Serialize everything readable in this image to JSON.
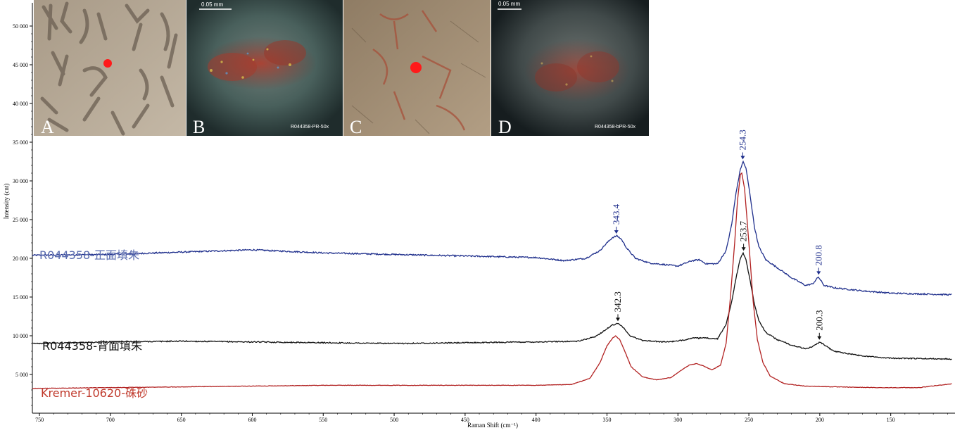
{
  "figure": {
    "panels": [
      {
        "letter": "A",
        "scale_text": "",
        "caption": ""
      },
      {
        "letter": "B",
        "scale_text": "0.05 mm",
        "caption": "R044358-PR-50x"
      },
      {
        "letter": "C",
        "scale_text": "",
        "caption": ""
      },
      {
        "letter": "D",
        "scale_text": "0.05 mm",
        "caption": "R044358-bPR-50x"
      }
    ]
  },
  "chart_data": {
    "type": "line",
    "xlabel": "Raman Shift (cm⁻¹)",
    "ylabel": "Intensity (cnt)",
    "x_reversed": true,
    "xlim": [
      755,
      107
    ],
    "ylim": [
      0,
      55000
    ],
    "x_ticks": [
      750,
      700,
      650,
      600,
      550,
      500,
      450,
      400,
      350,
      300,
      250,
      200,
      150
    ],
    "y_ticks": [
      5000,
      10000,
      15000,
      20000,
      25000,
      30000,
      35000,
      40000,
      45000,
      50000
    ],
    "y_tick_labels": [
      "5 000",
      "10 000",
      "15 000",
      "20 000",
      "25 000",
      "30 000",
      "35 000",
      "40 000",
      "45 000",
      "50 000"
    ],
    "grid": false,
    "series": [
      {
        "name": "R044358-正面填朱",
        "color": "#1f2f8c",
        "label_color": "#5b6db0",
        "noise": 180,
        "points": [
          [
            755,
            20400
          ],
          [
            700,
            20500
          ],
          [
            650,
            20800
          ],
          [
            600,
            21100
          ],
          [
            550,
            20700
          ],
          [
            500,
            20500
          ],
          [
            450,
            20300
          ],
          [
            400,
            20100
          ],
          [
            380,
            19700
          ],
          [
            365,
            20000
          ],
          [
            355,
            21000
          ],
          [
            350,
            22000
          ],
          [
            346,
            22700
          ],
          [
            343,
            22900
          ],
          [
            340,
            22500
          ],
          [
            336,
            21300
          ],
          [
            330,
            20000
          ],
          [
            320,
            19400
          ],
          [
            300,
            19000
          ],
          [
            290,
            19700
          ],
          [
            285,
            19800
          ],
          [
            280,
            19300
          ],
          [
            272,
            19300
          ],
          [
            266,
            21000
          ],
          [
            262,
            24500
          ],
          [
            259,
            28500
          ],
          [
            256,
            31500
          ],
          [
            254,
            32500
          ],
          [
            252,
            31600
          ],
          [
            249,
            28000
          ],
          [
            246,
            24000
          ],
          [
            243,
            21500
          ],
          [
            238,
            19800
          ],
          [
            230,
            18800
          ],
          [
            220,
            17500
          ],
          [
            210,
            16500
          ],
          [
            205,
            16700
          ],
          [
            201,
            17600
          ],
          [
            197,
            16500
          ],
          [
            190,
            16200
          ],
          [
            170,
            15800
          ],
          [
            150,
            15500
          ],
          [
            107,
            15300
          ]
        ],
        "peaks": [
          {
            "x": 343.4,
            "y": 22900,
            "label": "343.4"
          },
          {
            "x": 254.3,
            "y": 32500,
            "label": "254.3"
          },
          {
            "x": 200.8,
            "y": 17600,
            "label": "200.8"
          }
        ]
      },
      {
        "name": "R044358-背面填朱",
        "color": "#111111",
        "label_color": "#111111",
        "noise": 140,
        "points": [
          [
            755,
            9000
          ],
          [
            700,
            9200
          ],
          [
            650,
            9300
          ],
          [
            600,
            9200
          ],
          [
            550,
            9100
          ],
          [
            500,
            9000
          ],
          [
            450,
            9100
          ],
          [
            400,
            9200
          ],
          [
            370,
            9300
          ],
          [
            358,
            9900
          ],
          [
            350,
            10900
          ],
          [
            346,
            11400
          ],
          [
            342,
            11600
          ],
          [
            338,
            11000
          ],
          [
            334,
            10000
          ],
          [
            325,
            9400
          ],
          [
            310,
            9200
          ],
          [
            300,
            9300
          ],
          [
            290,
            9700
          ],
          [
            280,
            9700
          ],
          [
            272,
            9600
          ],
          [
            266,
            11500
          ],
          [
            262,
            14500
          ],
          [
            259,
            17500
          ],
          [
            256,
            20000
          ],
          [
            254,
            20700
          ],
          [
            252,
            19800
          ],
          [
            249,
            17000
          ],
          [
            246,
            14000
          ],
          [
            243,
            12000
          ],
          [
            238,
            10400
          ],
          [
            230,
            9500
          ],
          [
            220,
            8800
          ],
          [
            210,
            8300
          ],
          [
            205,
            8600
          ],
          [
            200,
            9200
          ],
          [
            196,
            8700
          ],
          [
            190,
            8000
          ],
          [
            170,
            7400
          ],
          [
            150,
            7100
          ],
          [
            107,
            7000
          ]
        ],
        "peaks": [
          {
            "x": 342.3,
            "y": 11600,
            "label": "342.3"
          },
          {
            "x": 253.7,
            "y": 20700,
            "label": "253.7"
          },
          {
            "x": 200.3,
            "y": 9200,
            "label": "200.3"
          }
        ]
      },
      {
        "name": "Kremer-10620-硃砂",
        "color": "#b22222",
        "label_color": "#c0392b",
        "noise": 60,
        "points": [
          [
            755,
            3200
          ],
          [
            700,
            3300
          ],
          [
            650,
            3400
          ],
          [
            600,
            3500
          ],
          [
            550,
            3600
          ],
          [
            500,
            3600
          ],
          [
            450,
            3600
          ],
          [
            400,
            3600
          ],
          [
            375,
            3700
          ],
          [
            362,
            4500
          ],
          [
            355,
            6500
          ],
          [
            350,
            8700
          ],
          [
            346,
            9700
          ],
          [
            344,
            10000
          ],
          [
            341,
            9500
          ],
          [
            337,
            7800
          ],
          [
            333,
            6000
          ],
          [
            325,
            4700
          ],
          [
            315,
            4300
          ],
          [
            305,
            4600
          ],
          [
            298,
            5500
          ],
          [
            292,
            6200
          ],
          [
            287,
            6400
          ],
          [
            282,
            6100
          ],
          [
            276,
            5600
          ],
          [
            270,
            6200
          ],
          [
            266,
            9000
          ],
          [
            263,
            15000
          ],
          [
            260,
            22000
          ],
          [
            258,
            27500
          ],
          [
            256,
            30800
          ],
          [
            255,
            31000
          ],
          [
            253,
            29000
          ],
          [
            250,
            22000
          ],
          [
            247,
            14500
          ],
          [
            244,
            9500
          ],
          [
            240,
            6500
          ],
          [
            235,
            4800
          ],
          [
            225,
            3800
          ],
          [
            210,
            3500
          ],
          [
            190,
            3400
          ],
          [
            160,
            3300
          ],
          [
            130,
            3300
          ],
          [
            107,
            3800
          ]
        ]
      }
    ]
  }
}
